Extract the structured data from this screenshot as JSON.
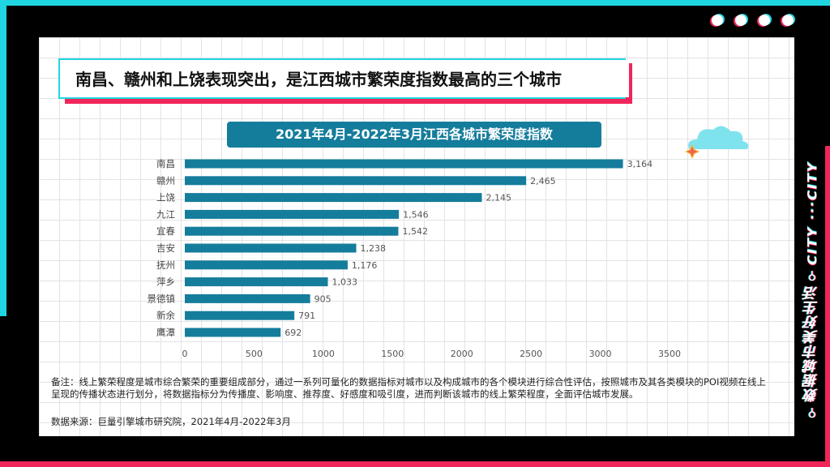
{
  "headline": "南昌、赣州和上饶表现突出，是江西城市繁荣度指数最高的三个城市",
  "side_label": {
    "cn": "数据城市美好生活",
    "en": "CITY ···CITY"
  },
  "colors": {
    "cyan": "#1fd6e0",
    "pink": "#f0255a",
    "bar": "#157d9c"
  },
  "chart_data": {
    "type": "bar",
    "orientation": "horizontal",
    "title": "2021年4月-2022年3月江西各城市繁荣度指数",
    "categories": [
      "南昌",
      "赣州",
      "上饶",
      "九江",
      "宜春",
      "吉安",
      "抚州",
      "萍乡",
      "景德镇",
      "新余",
      "鹰潭"
    ],
    "values": [
      3164,
      2465,
      2145,
      1546,
      1542,
      1238,
      1176,
      1033,
      905,
      791,
      692
    ],
    "value_labels": [
      "3,164",
      "2,465",
      "2,145",
      "1,546",
      "1,542",
      "1,238",
      "1,176",
      "1,033",
      "905",
      "791",
      "692"
    ],
    "xlim": [
      0,
      3500
    ],
    "xticks": [
      0,
      500,
      1000,
      1500,
      2000,
      2500,
      3000,
      3500
    ]
  },
  "note": "备注：线上繁荣程度是城市综合繁荣的重要组成部分，通过一系列可量化的数据指标对城市以及构成城市的各个模块进行综合性评估，按照城市及其各类模块的POI视频在线上呈现的传播状态进行划分，将数据指标分为传播度、影响度、推荐度、好感度和吸引度，进而判断该城市的线上繁荣程度，全面评估城市发展。",
  "source": "数据来源：巨量引擎城市研究院，2021年4月-2022年3月"
}
